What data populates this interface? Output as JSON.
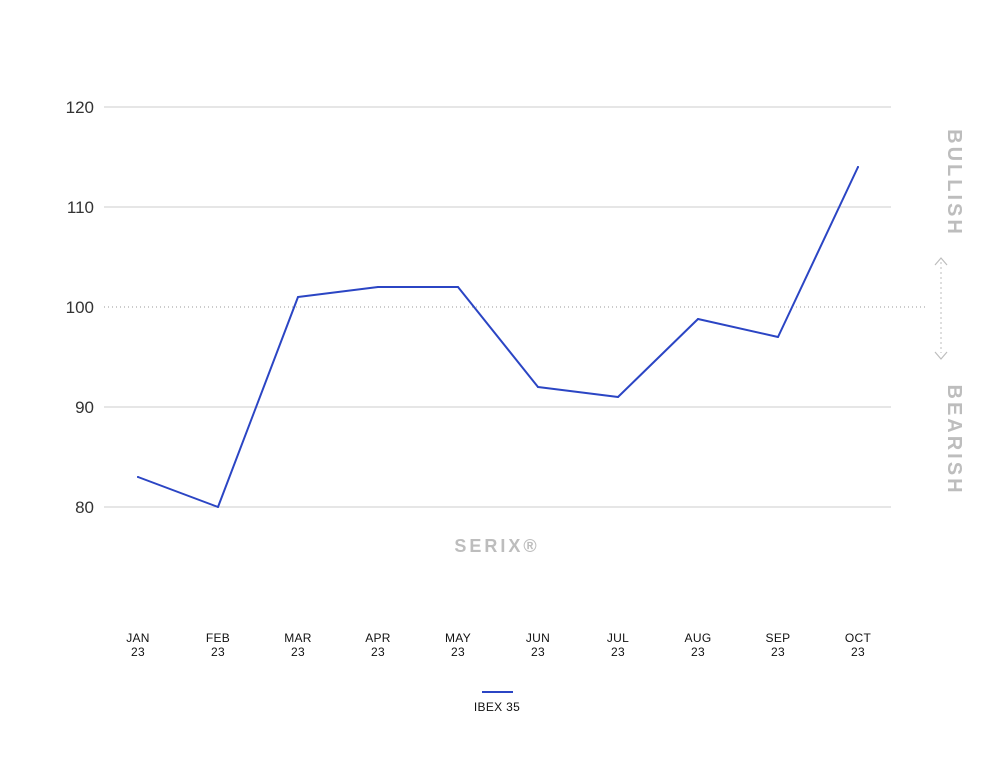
{
  "chart_data": {
    "type": "line",
    "categories": [
      [
        "JAN",
        "23"
      ],
      [
        "FEB",
        "23"
      ],
      [
        "MAR",
        "23"
      ],
      [
        "APR",
        "23"
      ],
      [
        "MAY",
        "23"
      ],
      [
        "JUN",
        "23"
      ],
      [
        "JUL",
        "23"
      ],
      [
        "AUG",
        "23"
      ],
      [
        "SEP",
        "23"
      ],
      [
        "OCT",
        "23"
      ]
    ],
    "series": [
      {
        "name": "IBEX 35",
        "color": "#2b45c4",
        "values": [
          83,
          80,
          101,
          102,
          102,
          92,
          91,
          98.8,
          97,
          114
        ]
      }
    ],
    "yticks": [
      120,
      110,
      100,
      90,
      80
    ],
    "ylim": [
      80,
      120
    ],
    "reference_line": 100,
    "grid": true,
    "legend_position": "bottom-center",
    "side_labels": {
      "upper": "BULLISH",
      "lower": "BEARISH"
    },
    "watermark": "SERIX®"
  }
}
